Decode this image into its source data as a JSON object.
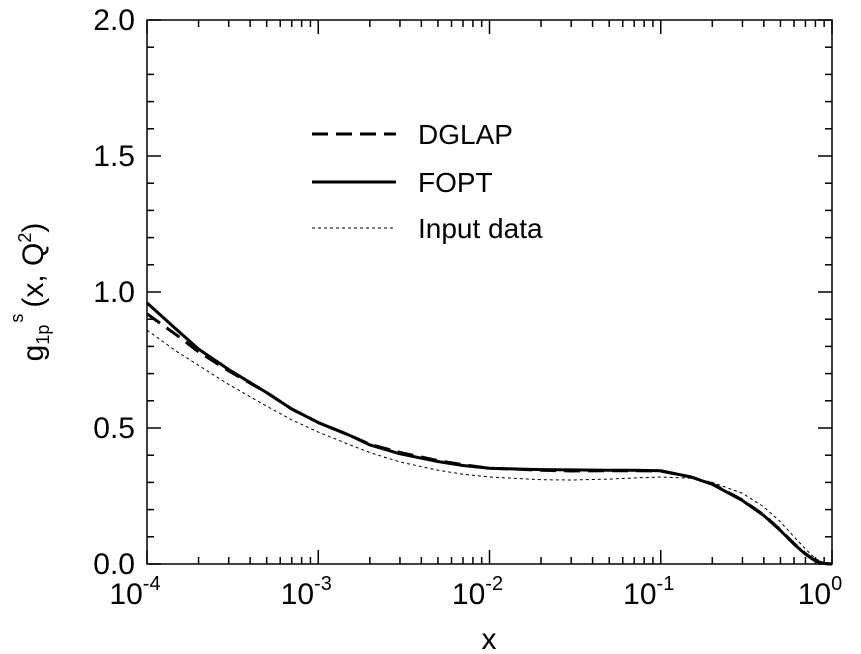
{
  "chart_data": {
    "type": "line",
    "title": "",
    "xlabel": "x",
    "ylabel": {
      "main": "g",
      "sub": "1p",
      "sup": "s",
      "rest": "(x, Q",
      "rest_sup": "2",
      "close": ")"
    },
    "xscale": "log",
    "xlim": [
      0.0001,
      1
    ],
    "ylim": [
      0.0,
      2.0
    ],
    "grid": false,
    "legend_position": "top-center",
    "x_ticks": [
      {
        "base": "10",
        "exp": "-4",
        "value": 0.0001
      },
      {
        "base": "10",
        "exp": "-3",
        "value": 0.001
      },
      {
        "base": "10",
        "exp": "-2",
        "value": 0.01
      },
      {
        "base": "10",
        "exp": "-1",
        "value": 0.1
      },
      {
        "base": "10",
        "exp": "0",
        "value": 1
      }
    ],
    "y_ticks": [
      {
        "label": "0.0",
        "value": 0.0
      },
      {
        "label": "0.5",
        "value": 0.5
      },
      {
        "label": "1.0",
        "value": 1.0
      },
      {
        "label": "1.5",
        "value": 1.5
      },
      {
        "label": "2.0",
        "value": 2.0
      }
    ],
    "series": [
      {
        "name": "DGLAP",
        "style": "dashed",
        "color": "#000000",
        "x": [
          0.0001,
          0.00015,
          0.0002,
          0.0003,
          0.0005,
          0.0007,
          0.001,
          0.0015,
          0.002,
          0.003,
          0.005,
          0.007,
          0.01,
          0.015,
          0.02,
          0.03,
          0.05,
          0.07,
          0.1,
          0.15,
          0.2,
          0.3,
          0.4,
          0.5,
          0.6,
          0.7,
          0.8,
          0.9,
          1.0
        ],
        "y": [
          0.92,
          0.84,
          0.78,
          0.71,
          0.63,
          0.57,
          0.52,
          0.475,
          0.44,
          0.41,
          0.38,
          0.365,
          0.352,
          0.348,
          0.345,
          0.342,
          0.343,
          0.343,
          0.342,
          0.32,
          0.295,
          0.235,
          0.18,
          0.125,
          0.075,
          0.038,
          0.012,
          0.002,
          0.0
        ]
      },
      {
        "name": "FOPT",
        "style": "solid",
        "color": "#000000",
        "x": [
          0.0001,
          0.00015,
          0.0002,
          0.0003,
          0.0005,
          0.0007,
          0.001,
          0.0015,
          0.002,
          0.003,
          0.005,
          0.007,
          0.01,
          0.015,
          0.02,
          0.03,
          0.05,
          0.07,
          0.1,
          0.15,
          0.2,
          0.3,
          0.4,
          0.5,
          0.6,
          0.7,
          0.8,
          0.9,
          1.0
        ],
        "y": [
          0.96,
          0.86,
          0.79,
          0.715,
          0.63,
          0.57,
          0.52,
          0.475,
          0.438,
          0.405,
          0.377,
          0.362,
          0.352,
          0.349,
          0.347,
          0.346,
          0.345,
          0.345,
          0.343,
          0.32,
          0.293,
          0.233,
          0.178,
          0.123,
          0.073,
          0.036,
          0.011,
          0.002,
          0.0
        ]
      },
      {
        "name": "Input data",
        "style": "dotted",
        "color": "#000000",
        "x": [
          0.0001,
          0.00015,
          0.0002,
          0.0003,
          0.0005,
          0.0007,
          0.001,
          0.0015,
          0.002,
          0.003,
          0.005,
          0.007,
          0.01,
          0.015,
          0.02,
          0.03,
          0.05,
          0.07,
          0.1,
          0.15,
          0.2,
          0.3,
          0.4,
          0.5,
          0.6,
          0.7,
          0.8,
          0.9,
          1.0
        ],
        "y": [
          0.86,
          0.78,
          0.73,
          0.66,
          0.58,
          0.53,
          0.485,
          0.44,
          0.41,
          0.375,
          0.345,
          0.33,
          0.32,
          0.314,
          0.31,
          0.309,
          0.312,
          0.316,
          0.32,
          0.315,
          0.3,
          0.26,
          0.21,
          0.155,
          0.1,
          0.055,
          0.02,
          0.004,
          0.0
        ]
      }
    ]
  }
}
